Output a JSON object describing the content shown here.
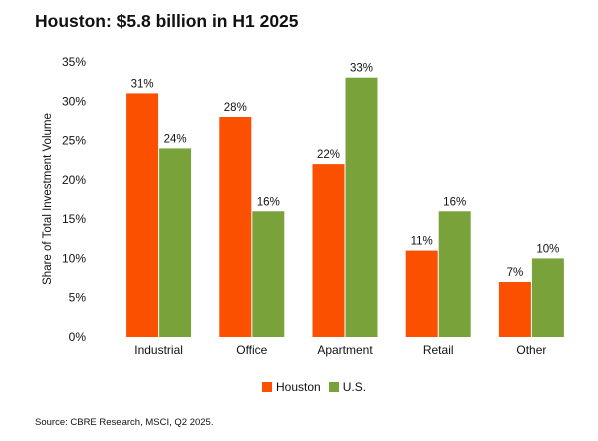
{
  "title": "Houston: $5.8 billion in H1 2025",
  "source": "Source: CBRE Research, MSCI, Q2 2025.",
  "colors": {
    "houston": "#fa5000",
    "us": "#7aa23a"
  },
  "chart_data": {
    "type": "bar",
    "title": "Houston: $5.8 billion in H1 2025",
    "xlabel": "",
    "ylabel": "Share of Total Investment Volume",
    "ylim": [
      0,
      35
    ],
    "yticks": [
      "0%",
      "5%",
      "10%",
      "15%",
      "20%",
      "25%",
      "30%",
      "35%"
    ],
    "categories": [
      "Industrial",
      "Office",
      "Apartment",
      "Retail",
      "Other"
    ],
    "series": [
      {
        "name": "Houston",
        "values": [
          31,
          28,
          22,
          11,
          7
        ],
        "labels": [
          "31%",
          "28%",
          "22%",
          "11%",
          "7%"
        ],
        "color": "#fa5000"
      },
      {
        "name": "U.S.",
        "values": [
          24,
          16,
          33,
          16,
          10
        ],
        "labels": [
          "24%",
          "16%",
          "33%",
          "16%",
          "10%"
        ],
        "color": "#7aa23a"
      }
    ],
    "grid": false,
    "legend": "bottom"
  }
}
